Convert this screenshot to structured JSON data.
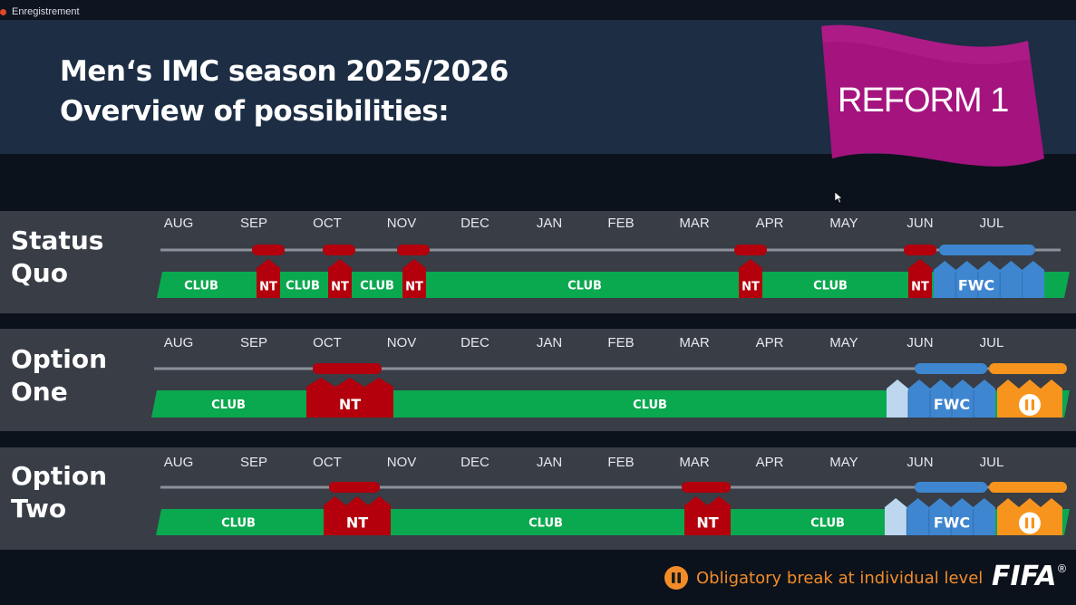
{
  "window": {
    "title": "Enregistrement"
  },
  "header": {
    "title_line1": "Men‘s IMC season 2025/2026",
    "title_line2": "Overview of possibilities:",
    "flag_label": "REFORM 1"
  },
  "legend": {
    "break_icon": "pause-icon",
    "break_label": "Obligatory break at individual level"
  },
  "logo": {
    "text": "FIFA",
    "mark": "®"
  },
  "colors": {
    "club": "#0aa84f",
    "nt": "#b3000c",
    "fwc": "#3f86d0",
    "fwc_light": "#bcd7ee",
    "break": "#f7941d",
    "flag": "#a4137e",
    "row_bg": "#383d46",
    "header_bg": "#1c2d44"
  },
  "months": [
    "AUG",
    "SEP",
    "OCT",
    "NOV",
    "DEC",
    "JAN",
    "FEB",
    "MAR",
    "APR",
    "MAY",
    "JUN",
    "JUL"
  ],
  "rows": [
    {
      "id": "status-quo",
      "line1": "Status",
      "line2": "Quo",
      "segments": [
        {
          "type": "club",
          "label": "CLUB"
        },
        {
          "type": "nt",
          "label": "NT"
        },
        {
          "type": "club",
          "label": "CLUB"
        },
        {
          "type": "nt",
          "label": "NT"
        },
        {
          "type": "club",
          "label": "CLUB"
        },
        {
          "type": "nt",
          "label": "NT"
        },
        {
          "type": "club",
          "label": "CLUB"
        },
        {
          "type": "nt",
          "label": "NT"
        },
        {
          "type": "club",
          "label": "CLUB"
        },
        {
          "type": "nt",
          "label": "NT"
        },
        {
          "type": "fwc",
          "label": "FWC"
        }
      ]
    },
    {
      "id": "option-one",
      "line1": "Option",
      "line2": "One",
      "segments": [
        {
          "type": "club",
          "label": "CLUB"
        },
        {
          "type": "nt",
          "label": "NT"
        },
        {
          "type": "club",
          "label": "CLUB"
        },
        {
          "type": "fwc",
          "label": "FWC"
        },
        {
          "type": "break",
          "label": ""
        }
      ]
    },
    {
      "id": "option-two",
      "line1": "Option",
      "line2": "Two",
      "segments": [
        {
          "type": "club",
          "label": "CLUB"
        },
        {
          "type": "nt",
          "label": "NT"
        },
        {
          "type": "club",
          "label": "CLUB"
        },
        {
          "type": "nt",
          "label": "NT"
        },
        {
          "type": "club",
          "label": "CLUB"
        },
        {
          "type": "fwc",
          "label": "FWC"
        },
        {
          "type": "break",
          "label": ""
        }
      ]
    }
  ]
}
